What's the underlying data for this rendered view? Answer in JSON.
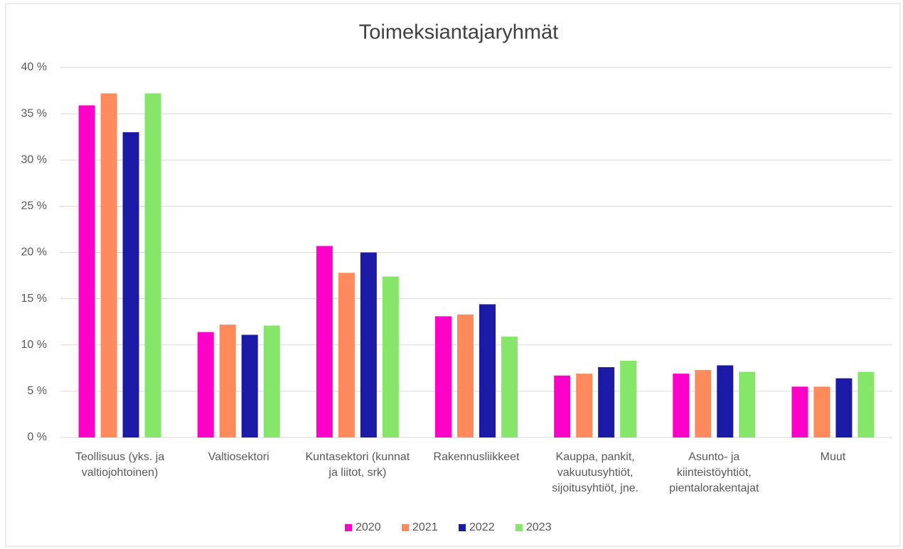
{
  "chart_data": {
    "type": "bar",
    "title": "Toimeksiantajaryhmät",
    "categories": [
      "Teollisuus (yks. ja valtiojohtoinen)",
      "Valtiosektori",
      "Kuntasektori (kunnat ja liitot, srk)",
      "Rakennusliikkeet",
      "Kauppa, pankit, vakuutusyhtiöt, sijoitusyhtiöt, jne.",
      "Asunto- ja kiinteistöyhtiöt, pientalorakentajat",
      "Muut"
    ],
    "series": [
      {
        "name": "2020",
        "color": "#ff00c8",
        "values": [
          35.9,
          11.4,
          20.7,
          13.1,
          6.7,
          6.9,
          5.5
        ]
      },
      {
        "name": "2021",
        "color": "#ff8a5c",
        "values": [
          37.2,
          12.2,
          17.8,
          13.3,
          6.9,
          7.3,
          5.5
        ]
      },
      {
        "name": "2022",
        "color": "#1a1aa6",
        "values": [
          33.0,
          11.1,
          20.0,
          14.4,
          7.6,
          7.8,
          6.4
        ]
      },
      {
        "name": "2023",
        "color": "#85e66a",
        "values": [
          37.2,
          12.1,
          17.4,
          10.9,
          8.3,
          7.1,
          7.1
        ]
      }
    ],
    "ylim": [
      0,
      40
    ],
    "yticks": [
      {
        "value": 0,
        "label": "0 %"
      },
      {
        "value": 5,
        "label": "5 %"
      },
      {
        "value": 10,
        "label": "10 %"
      },
      {
        "value": 15,
        "label": "15 %"
      },
      {
        "value": 20,
        "label": "20 %"
      },
      {
        "value": 25,
        "label": "25 %"
      },
      {
        "value": 30,
        "label": "30 %"
      },
      {
        "value": 35,
        "label": "35 %"
      },
      {
        "value": 40,
        "label": "40 %"
      }
    ],
    "grid": true,
    "legend": "bottom"
  }
}
